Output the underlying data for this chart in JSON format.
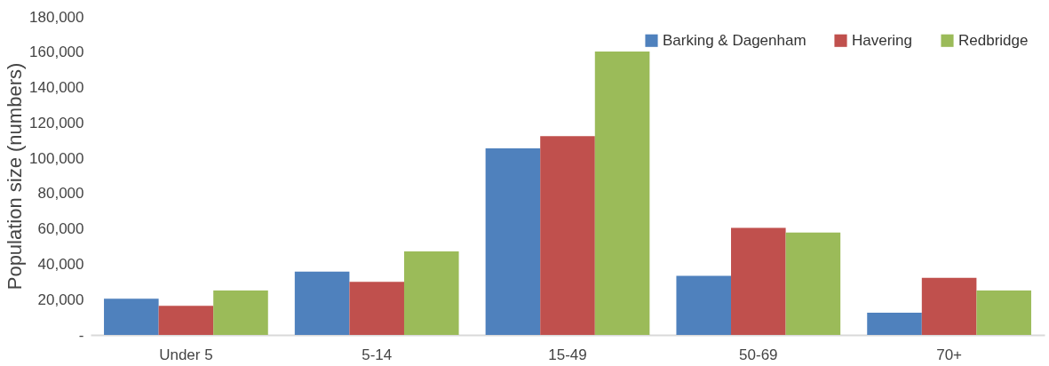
{
  "chart_data": {
    "type": "bar",
    "ylabel": "Population size (numbers)",
    "categories": [
      "Under 5",
      "5-14",
      "15-49",
      "50-69",
      "70+"
    ],
    "series": [
      {
        "name": "Barking & Dagenham",
        "color": "#4f81bd",
        "values": [
          20500,
          35800,
          105600,
          33400,
          12600
        ]
      },
      {
        "name": "Havering",
        "color": "#c0504d",
        "values": [
          16500,
          30000,
          112500,
          60600,
          32300
        ]
      },
      {
        "name": "Redbridge",
        "color": "#9bbb59",
        "values": [
          25100,
          47300,
          160400,
          57900,
          25200
        ]
      }
    ],
    "ylim": [
      0,
      180000
    ],
    "yticks": [
      {
        "value": 0,
        "label": "-"
      },
      {
        "value": 20000,
        "label": "20,000"
      },
      {
        "value": 40000,
        "label": "40,000"
      },
      {
        "value": 60000,
        "label": "60,000"
      },
      {
        "value": 80000,
        "label": "80,000"
      },
      {
        "value": 100000,
        "label": "100,000"
      },
      {
        "value": 120000,
        "label": "120,000"
      },
      {
        "value": 140000,
        "label": "140,000"
      },
      {
        "value": 160000,
        "label": "160,000"
      },
      {
        "value": 180000,
        "label": "180,000"
      }
    ],
    "grid": false,
    "legend": "top right"
  }
}
